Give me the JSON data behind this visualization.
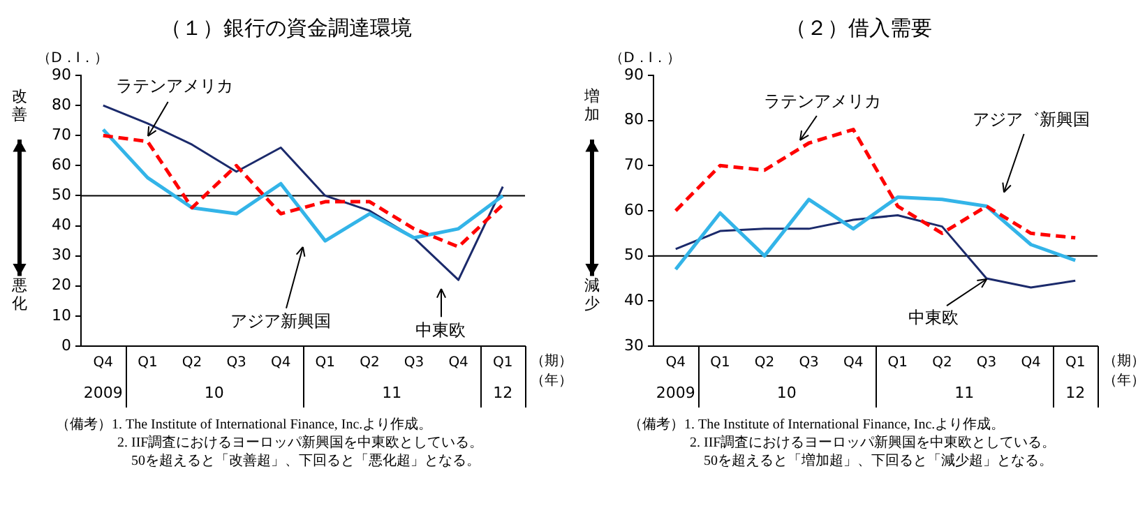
{
  "chart_data": [
    {
      "type": "line",
      "title": "（１）銀行の資金調達環境",
      "ylabel": "（D．I．）",
      "xlabel": "（期）",
      "categories": [
        "Q4",
        "Q1",
        "Q2",
        "Q3",
        "Q4",
        "Q1",
        "Q2",
        "Q3",
        "Q4",
        "Q1"
      ],
      "ylim": [
        0,
        90
      ],
      "yticks": [
        0,
        10,
        20,
        30,
        40,
        50,
        60,
        70,
        80,
        90
      ],
      "grid": false,
      "legend": false,
      "marker": "none",
      "series": [
        {
          "name": "ラテンアメリカ",
          "color": "#ff0000",
          "line_style": "dashed",
          "values": [
            70,
            68,
            46,
            60,
            44,
            48,
            48,
            39,
            33,
            47
          ]
        },
        {
          "name": "アジア新興国",
          "color": "#33b4e8",
          "line_style": "solid",
          "values": [
            72,
            56,
            46,
            44,
            54,
            35,
            44,
            36,
            39,
            50
          ]
        },
        {
          "name": "中東欧",
          "color": "#1b2a6b",
          "line_style": "solid",
          "values": [
            80,
            74,
            67,
            58,
            66,
            50,
            45,
            36,
            22,
            53
          ]
        }
      ],
      "ref_lines": [
        {
          "axis": "y",
          "value": 50,
          "color": "#000000"
        }
      ],
      "annotations": [
        "改善",
        "悪化",
        "（年）",
        "2009",
        "10",
        "11",
        "12",
        "（備考）1. The Institute of International Finance, Inc.より作成。",
        "2. IIF調査におけるヨーロッパ新興国を中東欧としている。",
        "50を超えると「改善超」、下回ると「悪化超」となる。"
      ]
    },
    {
      "type": "line",
      "title": "（２）借入需要",
      "ylabel": "（D．I．）",
      "xlabel": "（期）",
      "categories": [
        "Q4",
        "Q1",
        "Q2",
        "Q3",
        "Q4",
        "Q1",
        "Q2",
        "Q3",
        "Q4",
        "Q1"
      ],
      "ylim": [
        30,
        90
      ],
      "yticks": [
        30,
        40,
        50,
        60,
        70,
        80,
        90
      ],
      "grid": false,
      "legend": false,
      "marker": "none",
      "series": [
        {
          "name": "ラテンアメリカ",
          "color": "#ff0000",
          "line_style": "dashed",
          "values": [
            60,
            70,
            69,
            75,
            78,
            61,
            55,
            61,
            55,
            54
          ]
        },
        {
          "name": "アジア゛新興国",
          "color": "#33b4e8",
          "line_style": "solid",
          "values": [
            47,
            59.5,
            50,
            62.5,
            56,
            63,
            62.5,
            61,
            52.5,
            49
          ]
        },
        {
          "name": "中東欧",
          "color": "#1b2a6b",
          "line_style": "solid",
          "values": [
            51.5,
            55.5,
            56,
            56,
            58,
            59,
            56.5,
            45,
            43,
            44.5
          ]
        }
      ],
      "ref_lines": [
        {
          "axis": "y",
          "value": 50,
          "color": "#000000"
        }
      ],
      "annotations": [
        "増加",
        "減少",
        "（年）",
        "2009",
        "10",
        "11",
        "12",
        "（備考）1. The Institute of International Finance, Inc.より作成。",
        "2. IIF調査におけるヨーロッパ新興国を中東欧としている。",
        "50を超えると「増加超」、下回ると「減少超」となる。"
      ]
    }
  ]
}
